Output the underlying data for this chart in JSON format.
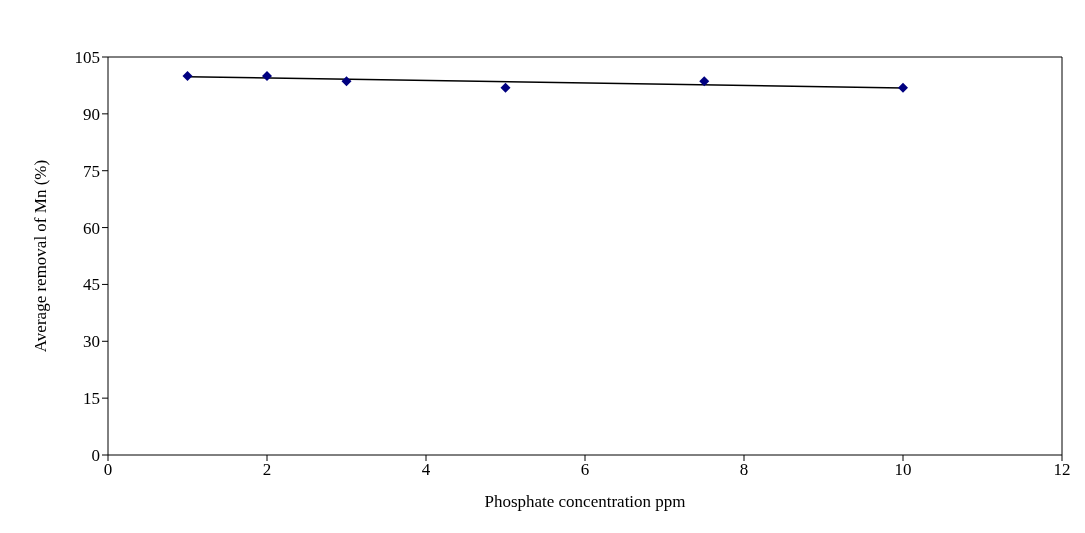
{
  "chart_data": {
    "type": "scatter",
    "xlabel": "Phosphate concentration ppm",
    "ylabel": "Average removal of Mn (%)",
    "series": [
      {
        "color": "#000080",
        "x": [
          1,
          2,
          3,
          5,
          7.5,
          10
        ],
        "values": [
          100,
          100,
          98.6,
          96.9,
          98.6,
          96.9
        ],
        "marker": "diamond"
      },
      {
        "type": "line",
        "color": "#000000",
        "x": [
          1,
          10
        ],
        "values": [
          99.8,
          96.8
        ],
        "marker": "none",
        "line_style": "solid"
      }
    ],
    "xlim": [
      0,
      12
    ],
    "xticks": [
      0,
      2,
      4,
      6,
      8,
      10,
      12
    ],
    "ylim": [
      0,
      105
    ],
    "yticks": [
      0,
      15,
      30,
      45,
      60,
      75,
      90,
      105
    ]
  }
}
